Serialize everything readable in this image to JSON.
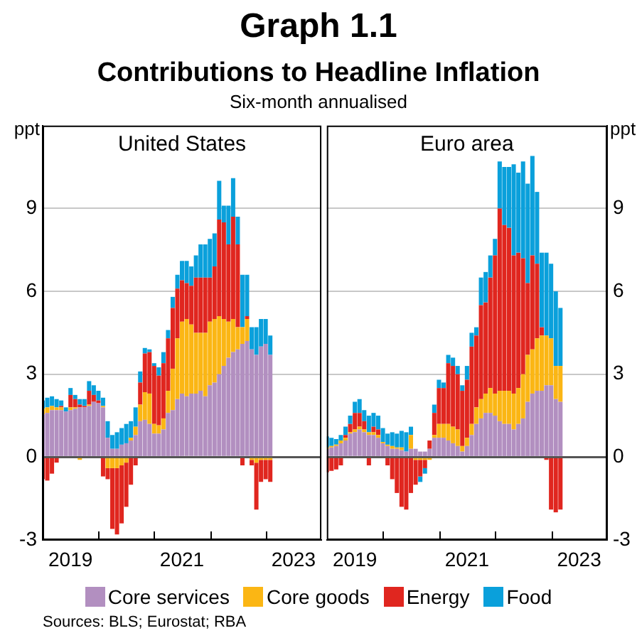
{
  "chart_data": [
    {
      "type": "other",
      "title": "Graph 1.1",
      "subtitle": "Contributions to Headline Inflation",
      "annotations": [
        "Six-month annualised"
      ]
    },
    {
      "type": "bar",
      "title": "United States",
      "ylabel": "ppt",
      "stacked": true,
      "grid": "y",
      "legend": "bottom",
      "x": [
        "2019-01",
        "2019-02",
        "2019-03",
        "2019-04",
        "2019-05",
        "2019-06",
        "2019-07",
        "2019-08",
        "2019-09",
        "2019-10",
        "2019-11",
        "2019-12",
        "2020-01",
        "2020-02",
        "2020-03",
        "2020-04",
        "2020-05",
        "2020-06",
        "2020-07",
        "2020-08",
        "2020-09",
        "2020-10",
        "2020-11",
        "2020-12",
        "2021-01",
        "2021-02",
        "2021-03",
        "2021-04",
        "2021-05",
        "2021-06",
        "2021-07",
        "2021-08",
        "2021-09",
        "2021-10",
        "2021-11",
        "2021-12",
        "2022-01",
        "2022-02",
        "2022-03",
        "2022-04",
        "2022-05",
        "2022-06",
        "2022-07",
        "2022-08",
        "2022-09",
        "2022-10",
        "2022-11",
        "2022-12",
        "2023-01",
        "2023-02"
      ],
      "xlim": [
        "2019-01",
        "2024-01"
      ],
      "xticks": [
        {
          "value": "2019-07",
          "label": "2019"
        },
        {
          "value": "2020-01",
          "label": null
        },
        {
          "value": "2021-01",
          "label": null
        },
        {
          "value": "2021-07",
          "label": "2021"
        },
        {
          "value": "2022-01",
          "label": null
        },
        {
          "value": "2023-01",
          "label": null
        },
        {
          "value": "2023-07",
          "label": "2023"
        }
      ],
      "ylim": [
        -3,
        12
      ],
      "yticks": [
        -3,
        0,
        3,
        6,
        9
      ],
      "series": [
        {
          "name": "Core services",
          "color": "#b28fc0",
          "values": [
            1.55,
            1.6,
            1.7,
            1.7,
            1.7,
            1.65,
            1.7,
            1.75,
            1.8,
            1.8,
            1.85,
            2.0,
            1.95,
            1.8,
            0.7,
            0.3,
            0.3,
            0.45,
            0.5,
            0.6,
            0.8,
            1.3,
            1.35,
            1.2,
            0.85,
            0.85,
            1.0,
            1.6,
            1.7,
            2.1,
            2.3,
            2.2,
            2.3,
            2.3,
            2.4,
            2.2,
            2.6,
            2.7,
            3.0,
            3.3,
            3.6,
            3.8,
            3.9,
            4.1,
            4.2,
            3.9,
            3.7,
            4.0,
            4.1,
            3.7
          ]
        },
        {
          "name": "Core goods",
          "color": "#fbb614",
          "values": [
            0.2,
            0.2,
            0.15,
            0.1,
            0.1,
            null,
            0.1,
            0.05,
            -0.1,
            null,
            0.05,
            null,
            null,
            0.05,
            -0.4,
            -0.4,
            -0.4,
            -0.3,
            -0.2,
            0.1,
            0.3,
            0.6,
            1.0,
            1.1,
            0.35,
            0.3,
            0.4,
            0.8,
            1.5,
            2.2,
            2.6,
            2.8,
            2.5,
            2.2,
            2.1,
            2.3,
            2.3,
            2.3,
            2.1,
            1.7,
            1.3,
            1.2,
            0.8,
            0.6,
            0.8,
            -0.1,
            -0.2,
            -0.1,
            -0.1,
            -0.1
          ]
        },
        {
          "name": "Energy",
          "color": "#e0261f",
          "values": [
            -0.8,
            -0.85,
            -0.6,
            -0.2,
            0.05,
            0.0,
            0.45,
            0.3,
            0.1,
            0.05,
            0.5,
            0.25,
            0.1,
            -0.7,
            -0.4,
            -2.2,
            -2.4,
            -2.1,
            -1.6,
            -1.0,
            -0.3,
            0.8,
            1.4,
            1.5,
            2.1,
            1.8,
            2.0,
            1.9,
            2.2,
            1.8,
            1.5,
            1.3,
            1.4,
            2.0,
            2.0,
            2.0,
            1.6,
            1.9,
            3.5,
            3.5,
            2.8,
            3.7,
            3.0,
            -0.3,
            0.1,
            -0.2,
            -1.7,
            -0.8,
            -0.7,
            -0.8
          ]
        },
        {
          "name": "Food",
          "color": "#0aa0db",
          "values": [
            0.3,
            0.35,
            0.35,
            0.3,
            0.2,
            0.15,
            0.25,
            0.15,
            0.2,
            0.25,
            0.35,
            0.35,
            0.35,
            0.3,
            0.6,
            0.5,
            0.6,
            0.6,
            0.7,
            0.6,
            0.7,
            0.4,
            0.2,
            0.1,
            0.1,
            0.3,
            0.4,
            0.3,
            0.4,
            0.5,
            0.7,
            0.8,
            0.7,
            0.8,
            1.2,
            1.2,
            1.4,
            1.2,
            1.4,
            0.6,
            1.4,
            1.4,
            1.0,
            1.9,
            1.5,
            0.8,
            1.0,
            1.0,
            0.9,
            0.7
          ]
        }
      ]
    },
    {
      "type": "bar",
      "title": "Euro area",
      "ylabel": "ppt",
      "stacked": true,
      "grid": "y",
      "annotations": [
        "Sources: BLS; Eurostat; RBA"
      ],
      "x": [
        "2019-01",
        "2019-02",
        "2019-03",
        "2019-04",
        "2019-05",
        "2019-06",
        "2019-07",
        "2019-08",
        "2019-09",
        "2019-10",
        "2019-11",
        "2019-12",
        "2020-01",
        "2020-02",
        "2020-03",
        "2020-04",
        "2020-05",
        "2020-06",
        "2020-07",
        "2020-08",
        "2020-09",
        "2020-10",
        "2020-11",
        "2020-12",
        "2021-01",
        "2021-02",
        "2021-03",
        "2021-04",
        "2021-05",
        "2021-06",
        "2021-07",
        "2021-08",
        "2021-09",
        "2021-10",
        "2021-11",
        "2021-12",
        "2022-01",
        "2022-02",
        "2022-03",
        "2022-04",
        "2022-05",
        "2022-06",
        "2022-07",
        "2022-08",
        "2022-09",
        "2022-10",
        "2022-11",
        "2022-12",
        "2023-01",
        "2023-02",
        "2023-03"
      ],
      "xlim": [
        "2019-01",
        "2024-01"
      ],
      "xticks": [
        {
          "value": "2019-07",
          "label": "2019"
        },
        {
          "value": "2020-01",
          "label": null
        },
        {
          "value": "2021-01",
          "label": null
        },
        {
          "value": "2021-07",
          "label": "2021"
        },
        {
          "value": "2022-01",
          "label": null
        },
        {
          "value": "2023-01",
          "label": null
        },
        {
          "value": "2023-07",
          "label": "2023"
        }
      ],
      "ylim": [
        -3,
        12
      ],
      "yticks": [
        -3,
        0,
        3,
        6,
        9
      ],
      "series": [
        {
          "color": "#b28fc0",
          "values": [
            0.3,
            0.35,
            0.4,
            0.5,
            0.6,
            0.85,
            0.9,
            1.0,
            0.9,
            0.8,
            0.8,
            0.7,
            0.5,
            0.4,
            0.3,
            0.3,
            0.25,
            0.2,
            0.3,
            0.3,
            0.2,
            0.2,
            0.3,
            0.7,
            0.7,
            0.7,
            0.6,
            0.5,
            0.4,
            0.2,
            0.4,
            0.8,
            1.2,
            1.4,
            1.6,
            1.6,
            1.5,
            1.3,
            1.2,
            1.2,
            1.0,
            1.2,
            1.4,
            2.0,
            2.3,
            2.4,
            2.4,
            2.6,
            2.6,
            2.1,
            2.0
          ]
        },
        {
          "color": "#fbb614",
          "values": [
            0.05,
            0.05,
            0.05,
            0.1,
            0.1,
            0.05,
            0.1,
            0.1,
            0.1,
            0.1,
            0.1,
            0.1,
            0.05,
            0.05,
            0.1,
            0.05,
            0.1,
            0.0,
            0.5,
            -0.1,
            -0.1,
            -0.1,
            -0.1,
            0.1,
            0.5,
            0.5,
            0.6,
            0.6,
            0.6,
            0.2,
            0.3,
            0.4,
            0.6,
            0.7,
            0.7,
            0.9,
            0.8,
            1.1,
            1.2,
            1.2,
            1.3,
            1.3,
            1.6,
            1.7,
            1.6,
            1.9,
            2.0,
            1.8,
            1.7,
            1.2,
            1.3
          ]
        },
        {
          "color": "#e0261f",
          "values": [
            -0.55,
            -0.5,
            -0.45,
            -0.3,
            0.1,
            0.3,
            0.6,
            0.5,
            0.3,
            -0.3,
            0.2,
            0.2,
            0.0,
            -0.3,
            -0.8,
            -1.3,
            -1.8,
            -1.9,
            -1.3,
            -0.9,
            -0.6,
            -0.3,
            0.3,
            0.8,
            1.3,
            1.3,
            2.2,
            2.2,
            2.0,
            2.0,
            2.1,
            2.8,
            2.6,
            3.4,
            3.3,
            4.0,
            5.0,
            6.6,
            6.0,
            5.9,
            5.0,
            4.9,
            4.2,
            2.6,
            3.4,
            2.7,
            0.3,
            -0.1,
            -1.9,
            -2.0,
            -1.9
          ]
        },
        {
          "color": "#0aa0db",
          "values": [
            0.4,
            0.3,
            0.2,
            0.2,
            0.3,
            0.3,
            0.4,
            0.5,
            0.4,
            0.6,
            0.5,
            0.5,
            0.5,
            0.4,
            0.5,
            0.5,
            0.6,
            0.7,
            0.3,
            0.0,
            -0.2,
            -0.2,
            0.0,
            0.3,
            0.3,
            0.2,
            0.3,
            0.3,
            0.3,
            0.2,
            0.5,
            0.5,
            0.3,
            1.0,
            1.1,
            0.8,
            0.6,
            1.7,
            2.1,
            2.2,
            3.3,
            2.9,
            3.5,
            3.6,
            3.6,
            2.6,
            2.7,
            3.0,
            2.7,
            2.7,
            2.1
          ]
        }
      ]
    }
  ]
}
